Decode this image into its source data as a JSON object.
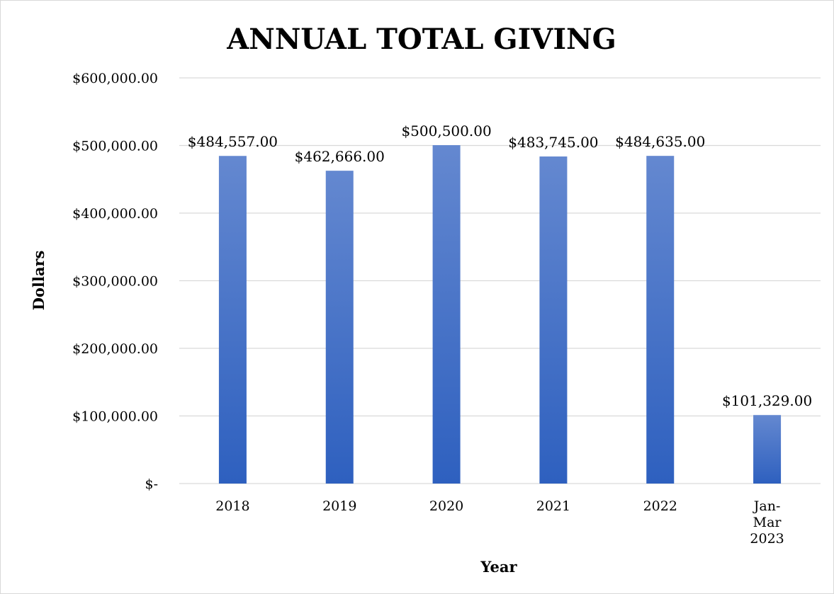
{
  "chart_data": {
    "type": "bar",
    "title": "ANNUAL TOTAL GIVING",
    "xlabel": "Year",
    "ylabel": "Dollars",
    "categories": [
      "2018",
      "2019",
      "2020",
      "2021",
      "2022",
      "Jan-Mar 2023"
    ],
    "category_lines": [
      [
        "2018"
      ],
      [
        "2019"
      ],
      [
        "2020"
      ],
      [
        "2021"
      ],
      [
        "2022"
      ],
      [
        "Jan-",
        "Mar",
        "2023"
      ]
    ],
    "values": [
      484557,
      462666,
      500500,
      483745,
      484635,
      101329
    ],
    "data_labels": [
      "$484,557.00",
      "$462,666.00",
      "$500,500.00",
      "$483,745.00",
      "$484,635.00",
      "$101,329.00"
    ],
    "ylim": [
      0,
      600000
    ],
    "yticks": [
      0,
      100000,
      200000,
      300000,
      400000,
      500000,
      600000
    ],
    "ytick_labels": [
      "$-",
      "$100,000.00",
      "$200,000.00",
      "$300,000.00",
      "$400,000.00",
      "$500,000.00",
      "$600,000.00"
    ],
    "grid": true,
    "legend": "none",
    "colors": {
      "bar_top": "#6488d0",
      "bar_bottom": "#2e60bf",
      "grid": "#d9d9d9"
    }
  }
}
